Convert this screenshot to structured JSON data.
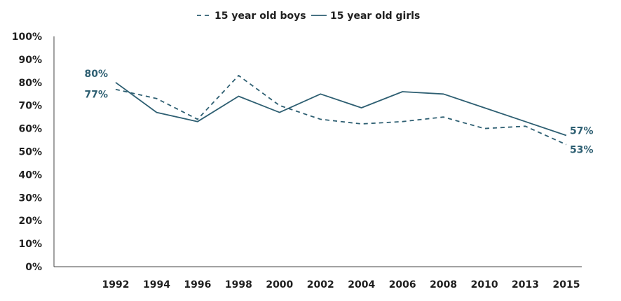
{
  "chart_data": {
    "type": "line",
    "categories": [
      "1992",
      "1994",
      "1996",
      "1998",
      "2000",
      "2002",
      "2004",
      "2006",
      "2008",
      "2010",
      "2013",
      "2015"
    ],
    "series": [
      {
        "name": "15 year old boys",
        "style": "dashed",
        "color": "#2e5f72",
        "values": [
          77,
          73,
          64,
          83,
          70,
          64,
          62,
          63,
          65,
          60,
          61,
          53
        ],
        "labels": {
          "first": "77%",
          "last": "53%"
        }
      },
      {
        "name": "15 year old girls",
        "style": "solid",
        "color": "#2e5f72",
        "values": [
          80,
          67,
          63,
          74,
          67,
          75,
          69,
          76,
          75,
          69,
          63,
          57
        ],
        "labels": {
          "first": "80%",
          "last": "57%"
        }
      }
    ],
    "ylim": [
      0,
      100
    ],
    "yticks": [
      "0%",
      "10%",
      "20%",
      "30%",
      "40%",
      "50%",
      "60%",
      "70%",
      "80%",
      "90%",
      "100%"
    ],
    "title": "",
    "xlabel": "",
    "ylabel": "",
    "grid": false,
    "legend_position": "top"
  }
}
